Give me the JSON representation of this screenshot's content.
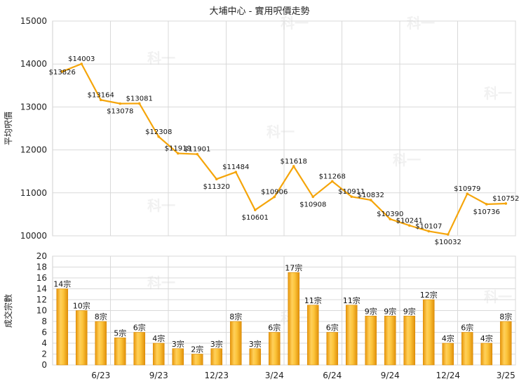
{
  "title": "大埔中心 - 實用呎價走勢",
  "chart_data": [
    {
      "type": "line",
      "ylabel": "平均呎價",
      "ylim": [
        10000,
        15000
      ],
      "yticks": [
        10000,
        11000,
        12000,
        13000,
        14000,
        15000
      ],
      "color": "#f5a50a",
      "values": [
        13826,
        14003,
        13164,
        13078,
        13081,
        12308,
        11919,
        11901,
        11320,
        11484,
        10601,
        10906,
        11618,
        10908,
        11268,
        10911,
        10832,
        10390,
        10241,
        10107,
        10032,
        10979,
        10736,
        10752
      ],
      "labels": [
        "$13826",
        "$14003",
        "$13164",
        "$13078",
        "$13081",
        "$12308",
        "$11919",
        "$11901",
        "$11320",
        "$11484",
        "$10601",
        "$10906",
        "$11618",
        "$10908",
        "$11268",
        "$10911",
        "$10832",
        "$10390",
        "$10241",
        "$10107",
        "$10032",
        "$10979",
        "$10736",
        "$10752"
      ]
    },
    {
      "type": "bar",
      "ylabel": "成交宗數",
      "ylim": [
        0,
        20
      ],
      "yticks": [
        0,
        2,
        4,
        6,
        8,
        10,
        12,
        14,
        16,
        18,
        20
      ],
      "color": "#f5a50a",
      "values": [
        14,
        10,
        8,
        5,
        6,
        4,
        3,
        2,
        3,
        8,
        3,
        6,
        17,
        11,
        6,
        11,
        9,
        9,
        9,
        12,
        4,
        6,
        4,
        8
      ],
      "labels": [
        "14宗",
        "10宗",
        "8宗",
        "5宗",
        "6宗",
        "4宗",
        "3宗",
        "2宗",
        "3宗",
        "8宗",
        "3宗",
        "6宗",
        "17宗",
        "11宗",
        "6宗",
        "11宗",
        "9宗",
        "9宗",
        "9宗",
        "12宗",
        "4宗",
        "6宗",
        "4宗",
        "8宗"
      ]
    }
  ],
  "x_ticks": [
    {
      "index": 2,
      "label": "6/23"
    },
    {
      "index": 5,
      "label": "9/23"
    },
    {
      "index": 8,
      "label": "12/23"
    },
    {
      "index": 11,
      "label": "3/24"
    },
    {
      "index": 14,
      "label": "6/24"
    },
    {
      "index": 17,
      "label": "9/24"
    },
    {
      "index": 20,
      "label": "12/24"
    },
    {
      "index": 23,
      "label": "3/25"
    }
  ],
  "watermark": "科一"
}
